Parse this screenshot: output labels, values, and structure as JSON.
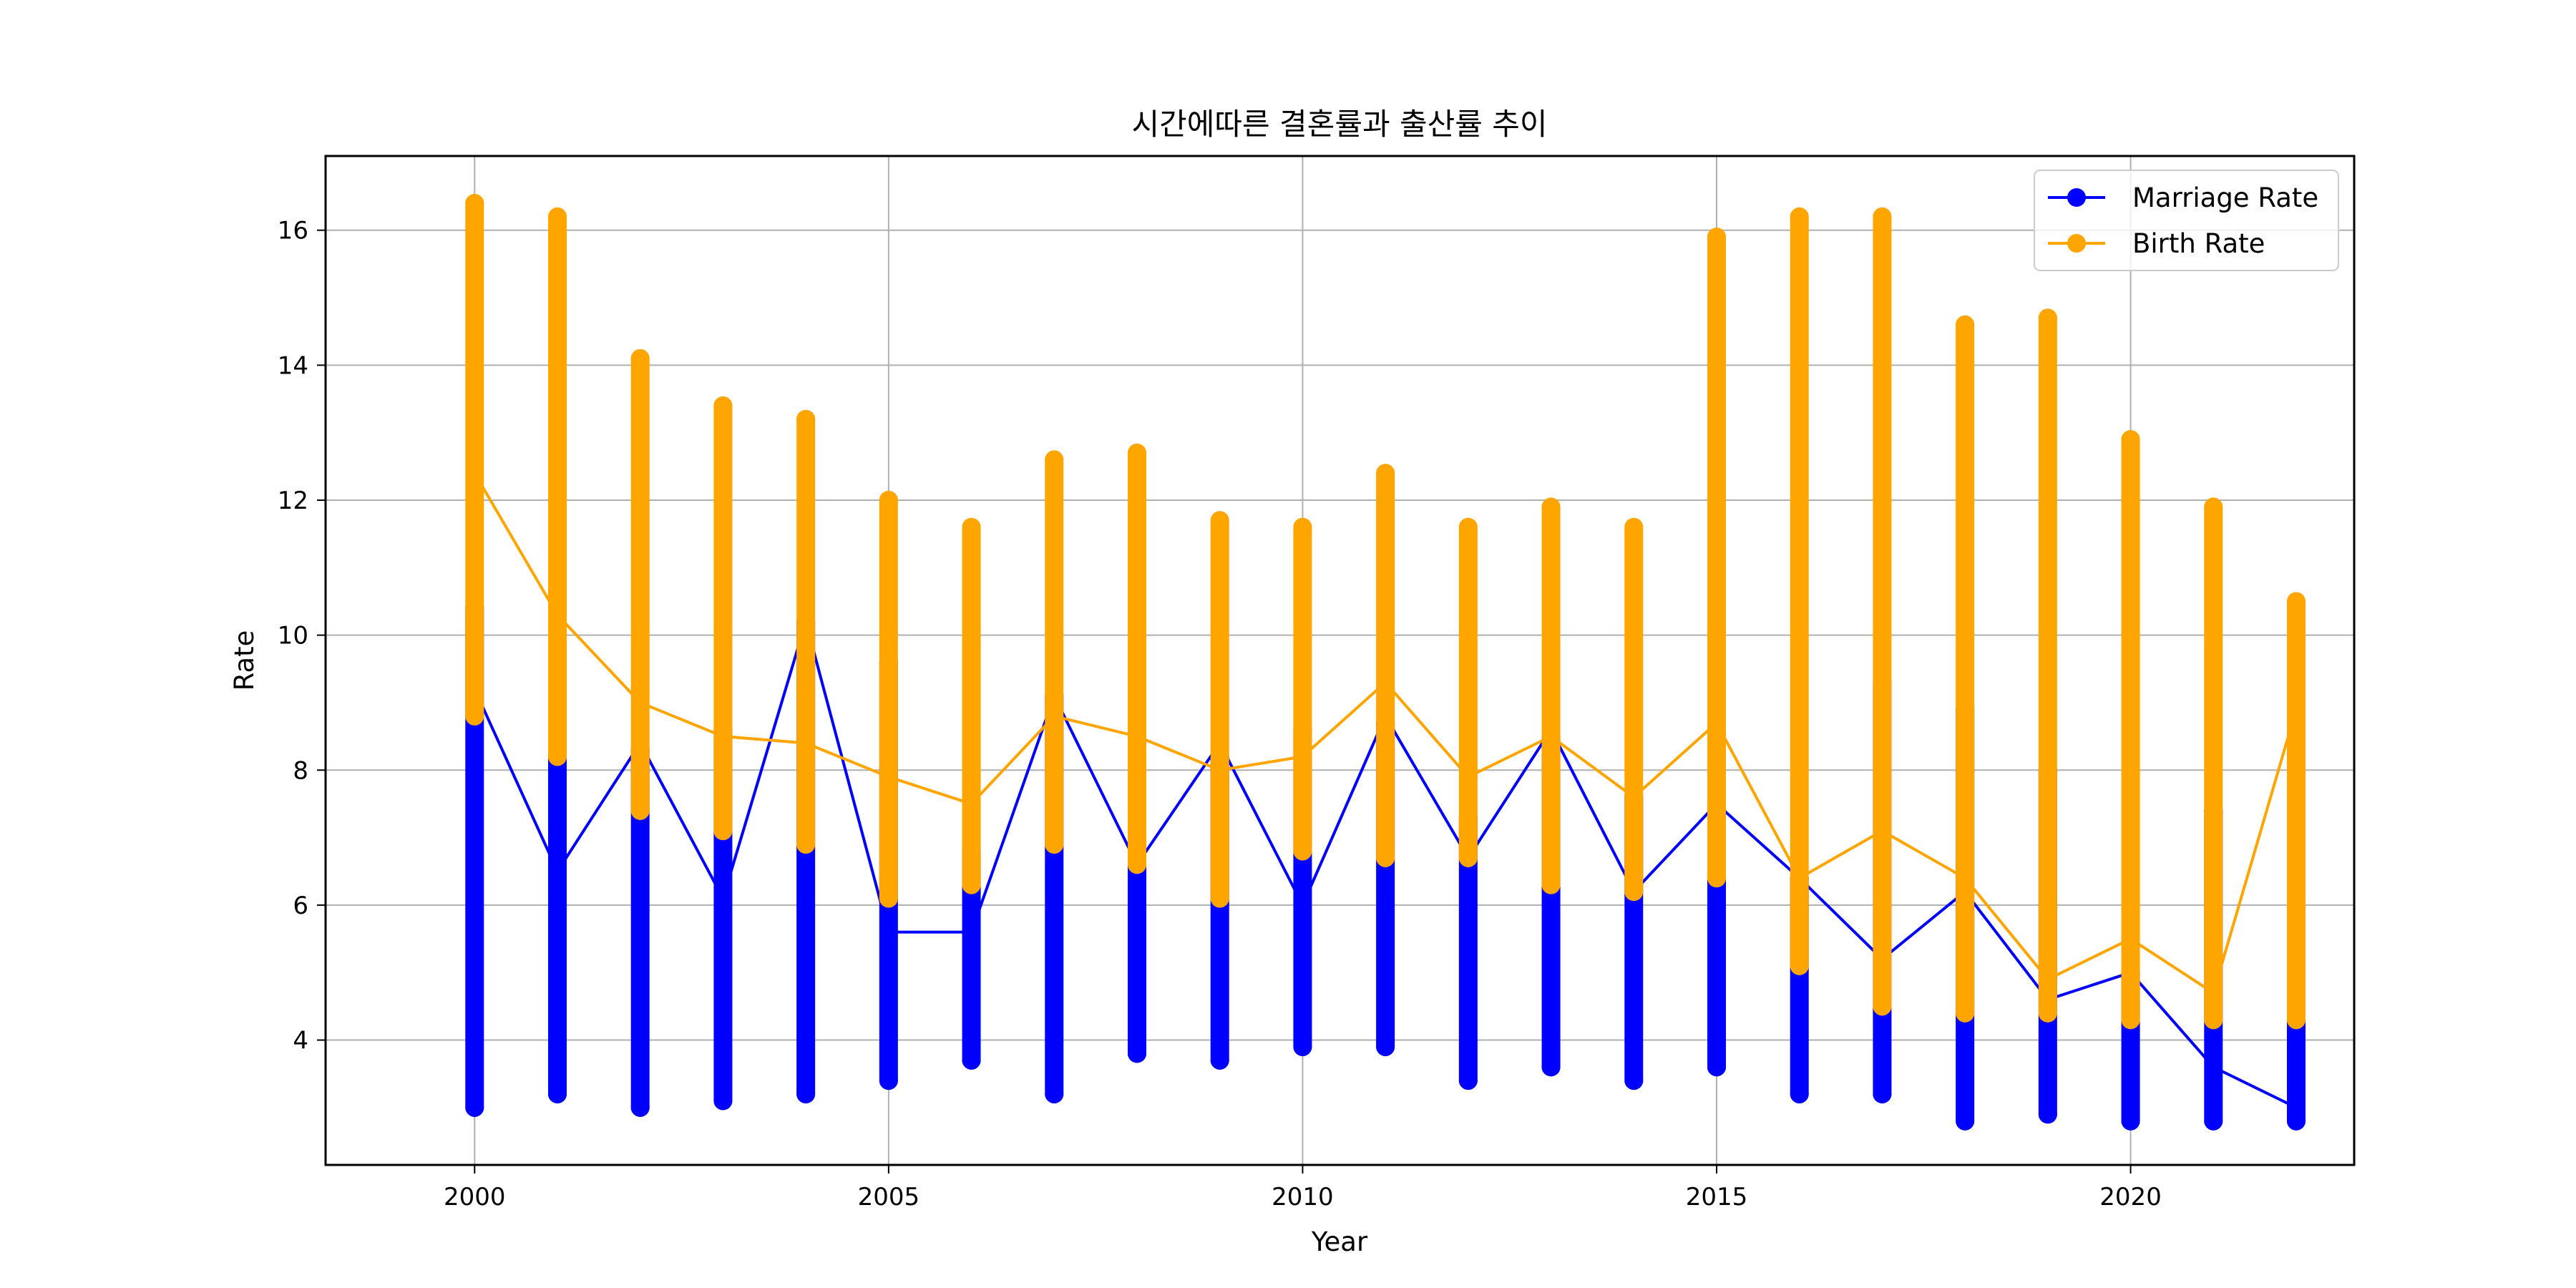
{
  "chart_data": {
    "type": "line",
    "title": "시간에따른 결혼률과 출산률 추이",
    "xlabel": "Year",
    "ylabel": "Rate",
    "xlim": [
      1998.2,
      2022.7
    ],
    "ylim": [
      2.15,
      17.1
    ],
    "xticks": [
      2000,
      2005,
      2010,
      2015,
      2020
    ],
    "yticks": [
      4,
      6,
      8,
      10,
      12,
      14,
      16
    ],
    "grid": true,
    "legend_position": "top-right",
    "x": [
      2000,
      2001,
      2002,
      2003,
      2004,
      2005,
      2006,
      2007,
      2008,
      2009,
      2010,
      2011,
      2012,
      2013,
      2014,
      2015,
      2016,
      2017,
      2018,
      2019,
      2020,
      2021,
      2022
    ],
    "series": [
      {
        "name": "Marriage Rate",
        "color": "#0000ff",
        "line": [
          9.2,
          6.5,
          8.4,
          6.1,
          10.2,
          5.6,
          5.6,
          9.1,
          6.6,
          8.4,
          6.0,
          8.8,
          6.7,
          8.6,
          6.2,
          7.5,
          6.4,
          5.2,
          6.2,
          4.6,
          5.0,
          3.6,
          3.0
        ],
        "ranges": [
          [
            3.0,
            10.4
          ],
          [
            3.2,
            9.3
          ],
          [
            3.0,
            8.3
          ],
          [
            3.1,
            8.6
          ],
          [
            3.2,
            10.2
          ],
          [
            3.4,
            9.6
          ],
          [
            3.7,
            6.8
          ],
          [
            3.2,
            9.1
          ],
          [
            3.8,
            8.9
          ],
          [
            3.7,
            8.2
          ],
          [
            3.9,
            8.6
          ],
          [
            3.9,
            8.7
          ],
          [
            3.4,
            7.3
          ],
          [
            3.6,
            8.5
          ],
          [
            3.4,
            7.6
          ],
          [
            3.6,
            7.5
          ],
          [
            3.2,
            6.4
          ],
          [
            3.2,
            9.3
          ],
          [
            2.8,
            8.9
          ],
          [
            2.9,
            8.0
          ],
          [
            2.8,
            5.0
          ],
          [
            2.8,
            7.4
          ],
          [
            2.8,
            4.5
          ]
        ]
      },
      {
        "name": "Birth Rate",
        "color": "#ffa500",
        "line": [
          12.4,
          10.3,
          9.0,
          8.5,
          8.4,
          7.9,
          7.5,
          8.8,
          8.5,
          8.0,
          8.2,
          9.3,
          7.9,
          8.5,
          7.6,
          8.7,
          6.4,
          7.1,
          6.4,
          4.9,
          5.5,
          4.7,
          8.9
        ],
        "ranges": [
          [
            8.8,
            16.4
          ],
          [
            8.2,
            16.2
          ],
          [
            7.4,
            14.1
          ],
          [
            7.1,
            13.4
          ],
          [
            6.9,
            13.2
          ],
          [
            6.1,
            12.0
          ],
          [
            6.3,
            11.6
          ],
          [
            6.9,
            12.6
          ],
          [
            6.6,
            12.7
          ],
          [
            6.1,
            11.7
          ],
          [
            6.8,
            11.6
          ],
          [
            6.7,
            12.4
          ],
          [
            6.7,
            11.6
          ],
          [
            6.3,
            11.9
          ],
          [
            6.2,
            11.6
          ],
          [
            6.4,
            15.9
          ],
          [
            5.1,
            16.2
          ],
          [
            4.5,
            16.2
          ],
          [
            4.4,
            14.6
          ],
          [
            4.4,
            14.7
          ],
          [
            4.3,
            12.9
          ],
          [
            4.3,
            11.9
          ],
          [
            4.3,
            10.5
          ]
        ]
      }
    ]
  }
}
